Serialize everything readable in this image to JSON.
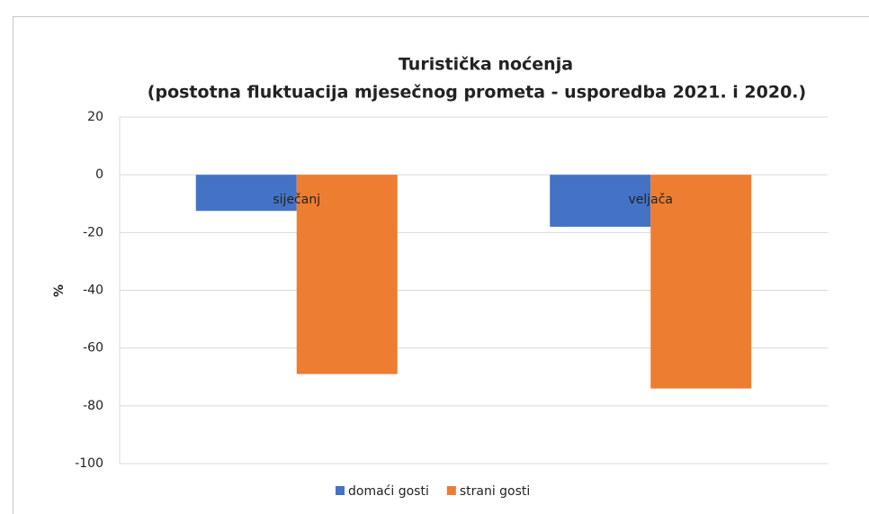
{
  "chart_data": {
    "type": "bar",
    "title": [
      "Turistička noćenja",
      "(postotna fluktuacija  mjesečnog prometa - usporedba 2021. i 2020.)"
    ],
    "y_label": "%",
    "categories": [
      "siječanj",
      "veljača"
    ],
    "series": [
      {
        "name": "domaći gosti",
        "color": "#4472c4",
        "values": [
          -12.5,
          -18
        ]
      },
      {
        "name": "strani gosti",
        "color": "#ed7d31",
        "values": [
          -69,
          -74
        ]
      }
    ],
    "ylim": [
      -100,
      20
    ],
    "yticks": [
      -100,
      -80,
      -60,
      -40,
      -20,
      0,
      20
    ],
    "grid": true
  }
}
